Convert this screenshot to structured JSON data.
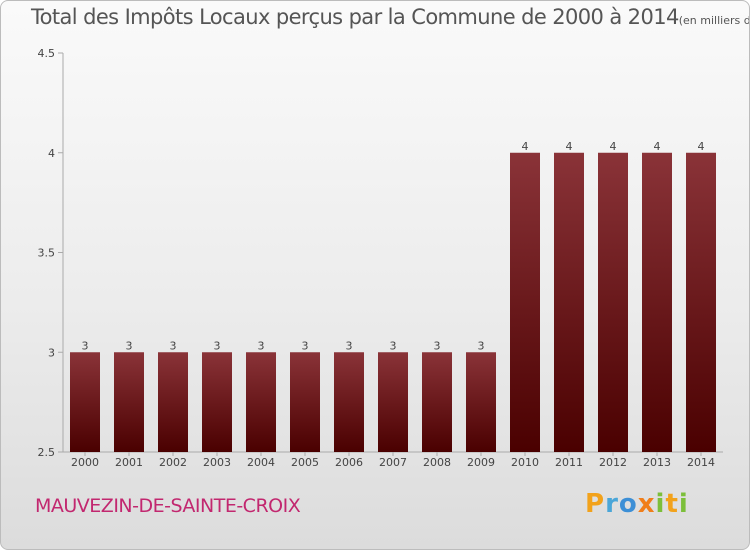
{
  "chart_data": {
    "type": "bar",
    "title": "Total des Impôts Locaux perçus par la Commune de 2000 à 2014",
    "unit_label": "(en milliers d'€)",
    "categories": [
      "2000",
      "2001",
      "2002",
      "2003",
      "2004",
      "2005",
      "2006",
      "2007",
      "2008",
      "2009",
      "2010",
      "2011",
      "2012",
      "2013",
      "2014"
    ],
    "values": [
      3,
      3,
      3,
      3,
      3,
      3,
      3,
      3,
      3,
      3,
      4,
      4,
      4,
      4,
      4
    ],
    "ylim": [
      2.5,
      4.5
    ],
    "yticks": [
      2.5,
      3,
      3.5,
      4,
      4.5
    ],
    "ytick_labels": [
      "2.5",
      "3",
      "3.5",
      "4",
      "4.5"
    ],
    "xlabel": "",
    "ylabel": "",
    "grid": false,
    "bar_color_top": "#8a3338",
    "bar_color_bottom": "#4a0000"
  },
  "commune": "MAUVEZIN-DE-SAINTE-CROIX",
  "brand": {
    "letters": [
      "P",
      "r",
      "o",
      "x",
      "i",
      "t",
      "i"
    ],
    "colors": [
      "#f2a21b",
      "#4aa6d8",
      "#3c8fd6",
      "#f07e1a",
      "#7cbf3a",
      "#f2a21b",
      "#7cbf3a"
    ]
  }
}
